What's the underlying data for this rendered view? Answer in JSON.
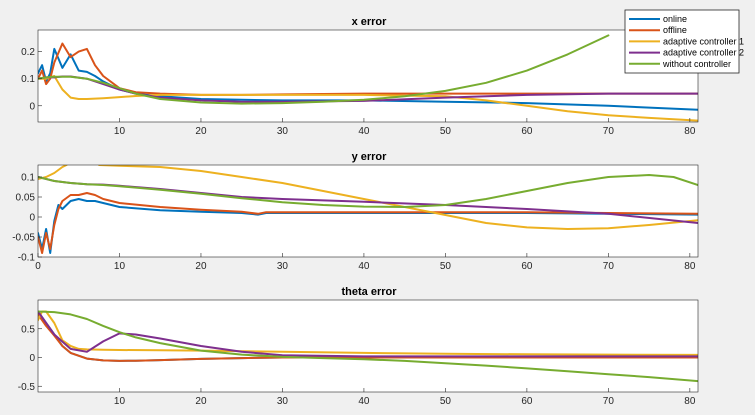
{
  "chart_data": [
    {
      "type": "line",
      "title": "x error",
      "xlim": [
        0,
        81
      ],
      "ylim": [
        -0.06,
        0.28
      ],
      "xticks": [
        10,
        20,
        30,
        40,
        50,
        60,
        70,
        80
      ],
      "yticks": [
        0,
        0.1,
        0.2
      ],
      "ytick_labels": [
        "0",
        "0.1",
        "0.2"
      ],
      "legend_position": "top-right",
      "series": [
        {
          "name": "online",
          "color": "#0072BD",
          "x": [
            0,
            0.5,
            1,
            1.5,
            2,
            3,
            4,
            5,
            6,
            7,
            8,
            10,
            12,
            15,
            20,
            25,
            30,
            40,
            50,
            60,
            70,
            81
          ],
          "y": [
            0.12,
            0.15,
            0.09,
            0.12,
            0.21,
            0.14,
            0.19,
            0.13,
            0.125,
            0.11,
            0.09,
            0.06,
            0.045,
            0.035,
            0.025,
            0.022,
            0.02,
            0.02,
            0.015,
            0.01,
            0.0,
            -0.015
          ]
        },
        {
          "name": "offline",
          "color": "#D95319",
          "x": [
            0,
            0.5,
            1,
            1.5,
            2,
            3,
            4,
            5,
            6,
            7,
            8,
            10,
            12,
            15,
            20,
            25,
            30,
            40,
            50,
            60,
            70,
            81
          ],
          "y": [
            0.1,
            0.13,
            0.08,
            0.1,
            0.16,
            0.23,
            0.18,
            0.2,
            0.21,
            0.15,
            0.11,
            0.065,
            0.05,
            0.045,
            0.04,
            0.04,
            0.042,
            0.045,
            0.045,
            0.045,
            0.045,
            0.045
          ]
        },
        {
          "name": "adaptive controller 1",
          "color": "#EDB120",
          "x": [
            0,
            1,
            2,
            3,
            4,
            5,
            6,
            8,
            10,
            12,
            15,
            20,
            25,
            30,
            40,
            50,
            55,
            60,
            65,
            70,
            75,
            81
          ],
          "y": [
            0.1,
            0.1,
            0.11,
            0.06,
            0.03,
            0.025,
            0.025,
            0.028,
            0.032,
            0.036,
            0.04,
            0.04,
            0.04,
            0.04,
            0.04,
            0.035,
            0.02,
            0.0,
            -0.02,
            -0.035,
            -0.045,
            -0.055
          ]
        },
        {
          "name": "adaptive controller 2",
          "color": "#7E2F8E",
          "x": [
            0,
            1,
            2,
            3,
            4,
            6,
            8,
            10,
            12,
            15,
            20,
            25,
            30,
            40,
            50,
            60,
            70,
            81
          ],
          "y": [
            0.1,
            0.105,
            0.105,
            0.108,
            0.108,
            0.1,
            0.08,
            0.06,
            0.045,
            0.03,
            0.02,
            0.015,
            0.015,
            0.018,
            0.03,
            0.04,
            0.045,
            0.045
          ]
        },
        {
          "name": "without controller",
          "color": "#77AC30",
          "x": [
            0,
            1,
            2,
            4,
            6,
            8,
            10,
            12,
            15,
            20,
            25,
            30,
            35,
            40,
            45,
            50,
            55,
            60,
            65,
            70
          ],
          "y": [
            0.1,
            0.105,
            0.107,
            0.107,
            0.1,
            0.085,
            0.065,
            0.045,
            0.025,
            0.012,
            0.008,
            0.01,
            0.015,
            0.022,
            0.035,
            0.055,
            0.085,
            0.13,
            0.19,
            0.26
          ]
        }
      ]
    },
    {
      "type": "line",
      "title": "y error",
      "xlim": [
        0,
        81
      ],
      "ylim": [
        -0.1,
        0.13
      ],
      "xticks": [
        0,
        10,
        20,
        30,
        40,
        50,
        60,
        70,
        80
      ],
      "yticks": [
        -0.1,
        -0.05,
        0,
        0.05,
        0.1
      ],
      "ytick_labels": [
        "-0.1",
        "-0.05",
        "0",
        "0.05",
        "0.1"
      ],
      "series": [
        {
          "name": "online",
          "color": "#0072BD",
          "x": [
            0,
            0.5,
            1,
            1.5,
            2,
            2.5,
            3,
            4,
            5,
            6,
            7,
            8,
            10,
            15,
            20,
            25,
            27,
            28,
            30,
            40,
            50,
            60,
            70,
            81
          ],
          "y": [
            -0.04,
            -0.08,
            -0.03,
            -0.09,
            -0.01,
            0.03,
            0.02,
            0.04,
            0.045,
            0.04,
            0.04,
            0.035,
            0.025,
            0.017,
            0.013,
            0.01,
            0.006,
            0.01,
            0.01,
            0.01,
            0.01,
            0.01,
            0.008,
            0.006
          ]
        },
        {
          "name": "offline",
          "color": "#D95319",
          "x": [
            0,
            0.5,
            1,
            1.5,
            2,
            2.5,
            3,
            4,
            5,
            6,
            7,
            8,
            10,
            15,
            20,
            25,
            27,
            28,
            30,
            40,
            50,
            60,
            70,
            81
          ],
          "y": [
            -0.05,
            -0.09,
            -0.04,
            -0.08,
            -0.02,
            0.02,
            0.04,
            0.055,
            0.055,
            0.06,
            0.055,
            0.045,
            0.035,
            0.025,
            0.018,
            0.013,
            0.008,
            0.012,
            0.012,
            0.012,
            0.012,
            0.012,
            0.01,
            0.008
          ]
        },
        {
          "name": "adaptive controller 1",
          "color": "#EDB120",
          "segments": [
            {
              "x": [
                0,
                1,
                2,
                3,
                3.5
              ],
              "y": [
                0.095,
                0.1,
                0.11,
                0.125,
                0.13
              ]
            },
            {
              "x": [
                7.5,
                10,
                15,
                20,
                25,
                30,
                35,
                40,
                45,
                50,
                55,
                60,
                65,
                70,
                75,
                81
              ],
              "y": [
                0.13,
                0.128,
                0.125,
                0.115,
                0.1,
                0.085,
                0.065,
                0.045,
                0.025,
                0.005,
                -0.015,
                -0.026,
                -0.03,
                -0.028,
                -0.02,
                -0.008
              ]
            }
          ]
        },
        {
          "name": "adaptive controller 2",
          "color": "#7E2F8E",
          "x": [
            0,
            2,
            4,
            6,
            8,
            10,
            15,
            20,
            25,
            30,
            40,
            50,
            60,
            70,
            81
          ],
          "y": [
            0.1,
            0.09,
            0.085,
            0.082,
            0.081,
            0.078,
            0.07,
            0.06,
            0.05,
            0.045,
            0.038,
            0.03,
            0.02,
            0.008,
            -0.015
          ]
        },
        {
          "name": "without controller",
          "color": "#77AC30",
          "x": [
            0,
            2,
            4,
            6,
            8,
            10,
            15,
            20,
            25,
            30,
            35,
            40,
            45,
            50,
            55,
            60,
            65,
            70,
            75,
            78,
            81
          ],
          "y": [
            0.1,
            0.09,
            0.085,
            0.082,
            0.08,
            0.077,
            0.068,
            0.058,
            0.047,
            0.037,
            0.03,
            0.026,
            0.025,
            0.03,
            0.045,
            0.065,
            0.085,
            0.1,
            0.105,
            0.1,
            0.08
          ]
        }
      ]
    },
    {
      "type": "line",
      "title": "theta error",
      "xlim": [
        0,
        81
      ],
      "ylim": [
        -0.6,
        1.0
      ],
      "xticks": [
        10,
        20,
        30,
        40,
        50,
        60,
        70,
        80
      ],
      "yticks": [
        -0.5,
        0,
        0.5
      ],
      "ytick_labels": [
        "-0.5",
        "0",
        "0.5"
      ],
      "series": [
        {
          "name": "online",
          "color": "#0072BD",
          "x": [
            0,
            1,
            2,
            3,
            4,
            6,
            8,
            10,
            12,
            15,
            20,
            25,
            30,
            40,
            50,
            60,
            70,
            81
          ],
          "y": [
            0.8,
            0.6,
            0.4,
            0.2,
            0.08,
            -0.02,
            -0.05,
            -0.06,
            -0.055,
            -0.045,
            -0.025,
            -0.01,
            0.0,
            0.0,
            0.0,
            0.0,
            0.0,
            0.0
          ]
        },
        {
          "name": "offline",
          "color": "#D95319",
          "x": [
            0,
            1,
            2,
            3,
            4,
            6,
            8,
            10,
            12,
            15,
            20,
            25,
            30,
            40,
            50,
            60,
            70,
            81
          ],
          "y": [
            0.75,
            0.55,
            0.38,
            0.2,
            0.08,
            -0.02,
            -0.05,
            -0.06,
            -0.055,
            -0.045,
            -0.025,
            -0.01,
            0.0,
            0.0,
            0.0,
            0.0,
            0.0,
            0.0
          ]
        },
        {
          "name": "adaptive controller 1",
          "color": "#EDB120",
          "x": [
            0,
            0.5,
            1,
            2,
            3,
            4,
            5,
            6,
            8,
            10,
            15,
            20,
            30,
            40,
            50,
            60,
            70,
            81
          ],
          "y": [
            0.65,
            0.8,
            0.8,
            0.6,
            0.3,
            0.2,
            0.15,
            0.14,
            0.135,
            0.13,
            0.125,
            0.12,
            0.1,
            0.08,
            0.065,
            0.055,
            0.05,
            0.045
          ]
        },
        {
          "name": "adaptive controller 2",
          "color": "#7E2F8E",
          "x": [
            0,
            2,
            4,
            6,
            8,
            10,
            12,
            15,
            20,
            25,
            30,
            40,
            50,
            60,
            70,
            81
          ],
          "y": [
            0.8,
            0.4,
            0.15,
            0.1,
            0.28,
            0.42,
            0.4,
            0.33,
            0.2,
            0.1,
            0.04,
            0.02,
            0.02,
            0.02,
            0.02,
            0.02
          ]
        },
        {
          "name": "without controller",
          "color": "#77AC30",
          "x": [
            0,
            2,
            4,
            6,
            8,
            10,
            12,
            15,
            20,
            25,
            30,
            35,
            40,
            45,
            50,
            55,
            60,
            65,
            70,
            75,
            81
          ],
          "y": [
            0.8,
            0.79,
            0.75,
            0.67,
            0.55,
            0.44,
            0.35,
            0.25,
            0.12,
            0.05,
            0.01,
            -0.01,
            -0.03,
            -0.06,
            -0.1,
            -0.14,
            -0.19,
            -0.24,
            -0.29,
            -0.34,
            -0.41
          ]
        }
      ]
    }
  ],
  "legend": {
    "entries": [
      {
        "label": "online",
        "color": "#0072BD"
      },
      {
        "label": "offline",
        "color": "#D95319"
      },
      {
        "label": "adaptive controller 1",
        "color": "#EDB120"
      },
      {
        "label": "adaptive controller 2",
        "color": "#7E2F8E"
      },
      {
        "label": "without controller",
        "color": "#77AC30"
      }
    ]
  },
  "colors": {
    "background": "#f0f0f0",
    "axes_background": "#ffffff",
    "axis_color": "#262626"
  }
}
